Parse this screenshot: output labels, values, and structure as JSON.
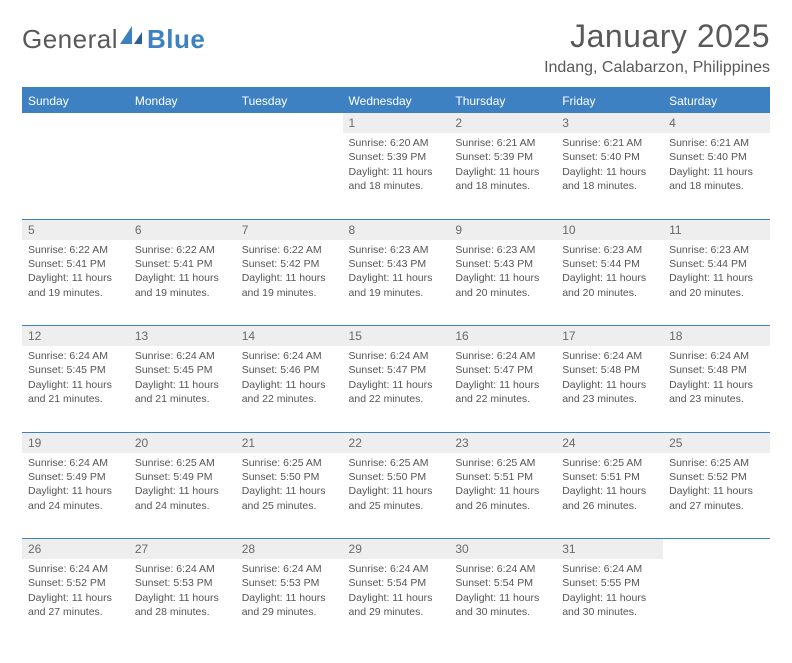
{
  "logo": {
    "text1": "General",
    "text2": "Blue"
  },
  "title": "January 2025",
  "location": "Indang, Calabarzon, Philippines",
  "colors": {
    "accent": "#3d81c2",
    "daynum_bg": "#eeeeee",
    "text": "#595959",
    "cell_text": "#555555"
  },
  "day_headers": [
    "Sunday",
    "Monday",
    "Tuesday",
    "Wednesday",
    "Thursday",
    "Friday",
    "Saturday"
  ],
  "weeks": [
    {
      "nums": [
        "",
        "",
        "",
        "1",
        "2",
        "3",
        "4"
      ],
      "sunrise": [
        "",
        "",
        "",
        "Sunrise: 6:20 AM",
        "Sunrise: 6:21 AM",
        "Sunrise: 6:21 AM",
        "Sunrise: 6:21 AM"
      ],
      "sunset": [
        "",
        "",
        "",
        "Sunset: 5:39 PM",
        "Sunset: 5:39 PM",
        "Sunset: 5:40 PM",
        "Sunset: 5:40 PM"
      ],
      "daylight": [
        "",
        "",
        "",
        "Daylight: 11 hours and 18 minutes.",
        "Daylight: 11 hours and 18 minutes.",
        "Daylight: 11 hours and 18 minutes.",
        "Daylight: 11 hours and 18 minutes."
      ]
    },
    {
      "nums": [
        "5",
        "6",
        "7",
        "8",
        "9",
        "10",
        "11"
      ],
      "sunrise": [
        "Sunrise: 6:22 AM",
        "Sunrise: 6:22 AM",
        "Sunrise: 6:22 AM",
        "Sunrise: 6:23 AM",
        "Sunrise: 6:23 AM",
        "Sunrise: 6:23 AM",
        "Sunrise: 6:23 AM"
      ],
      "sunset": [
        "Sunset: 5:41 PM",
        "Sunset: 5:41 PM",
        "Sunset: 5:42 PM",
        "Sunset: 5:43 PM",
        "Sunset: 5:43 PM",
        "Sunset: 5:44 PM",
        "Sunset: 5:44 PM"
      ],
      "daylight": [
        "Daylight: 11 hours and 19 minutes.",
        "Daylight: 11 hours and 19 minutes.",
        "Daylight: 11 hours and 19 minutes.",
        "Daylight: 11 hours and 19 minutes.",
        "Daylight: 11 hours and 20 minutes.",
        "Daylight: 11 hours and 20 minutes.",
        "Daylight: 11 hours and 20 minutes."
      ]
    },
    {
      "nums": [
        "12",
        "13",
        "14",
        "15",
        "16",
        "17",
        "18"
      ],
      "sunrise": [
        "Sunrise: 6:24 AM",
        "Sunrise: 6:24 AM",
        "Sunrise: 6:24 AM",
        "Sunrise: 6:24 AM",
        "Sunrise: 6:24 AM",
        "Sunrise: 6:24 AM",
        "Sunrise: 6:24 AM"
      ],
      "sunset": [
        "Sunset: 5:45 PM",
        "Sunset: 5:45 PM",
        "Sunset: 5:46 PM",
        "Sunset: 5:47 PM",
        "Sunset: 5:47 PM",
        "Sunset: 5:48 PM",
        "Sunset: 5:48 PM"
      ],
      "daylight": [
        "Daylight: 11 hours and 21 minutes.",
        "Daylight: 11 hours and 21 minutes.",
        "Daylight: 11 hours and 22 minutes.",
        "Daylight: 11 hours and 22 minutes.",
        "Daylight: 11 hours and 22 minutes.",
        "Daylight: 11 hours and 23 minutes.",
        "Daylight: 11 hours and 23 minutes."
      ]
    },
    {
      "nums": [
        "19",
        "20",
        "21",
        "22",
        "23",
        "24",
        "25"
      ],
      "sunrise": [
        "Sunrise: 6:24 AM",
        "Sunrise: 6:25 AM",
        "Sunrise: 6:25 AM",
        "Sunrise: 6:25 AM",
        "Sunrise: 6:25 AM",
        "Sunrise: 6:25 AM",
        "Sunrise: 6:25 AM"
      ],
      "sunset": [
        "Sunset: 5:49 PM",
        "Sunset: 5:49 PM",
        "Sunset: 5:50 PM",
        "Sunset: 5:50 PM",
        "Sunset: 5:51 PM",
        "Sunset: 5:51 PM",
        "Sunset: 5:52 PM"
      ],
      "daylight": [
        "Daylight: 11 hours and 24 minutes.",
        "Daylight: 11 hours and 24 minutes.",
        "Daylight: 11 hours and 25 minutes.",
        "Daylight: 11 hours and 25 minutes.",
        "Daylight: 11 hours and 26 minutes.",
        "Daylight: 11 hours and 26 minutes.",
        "Daylight: 11 hours and 27 minutes."
      ]
    },
    {
      "nums": [
        "26",
        "27",
        "28",
        "29",
        "30",
        "31",
        ""
      ],
      "sunrise": [
        "Sunrise: 6:24 AM",
        "Sunrise: 6:24 AM",
        "Sunrise: 6:24 AM",
        "Sunrise: 6:24 AM",
        "Sunrise: 6:24 AM",
        "Sunrise: 6:24 AM",
        ""
      ],
      "sunset": [
        "Sunset: 5:52 PM",
        "Sunset: 5:53 PM",
        "Sunset: 5:53 PM",
        "Sunset: 5:54 PM",
        "Sunset: 5:54 PM",
        "Sunset: 5:55 PM",
        ""
      ],
      "daylight": [
        "Daylight: 11 hours and 27 minutes.",
        "Daylight: 11 hours and 28 minutes.",
        "Daylight: 11 hours and 29 minutes.",
        "Daylight: 11 hours and 29 minutes.",
        "Daylight: 11 hours and 30 minutes.",
        "Daylight: 11 hours and 30 minutes.",
        ""
      ]
    }
  ]
}
